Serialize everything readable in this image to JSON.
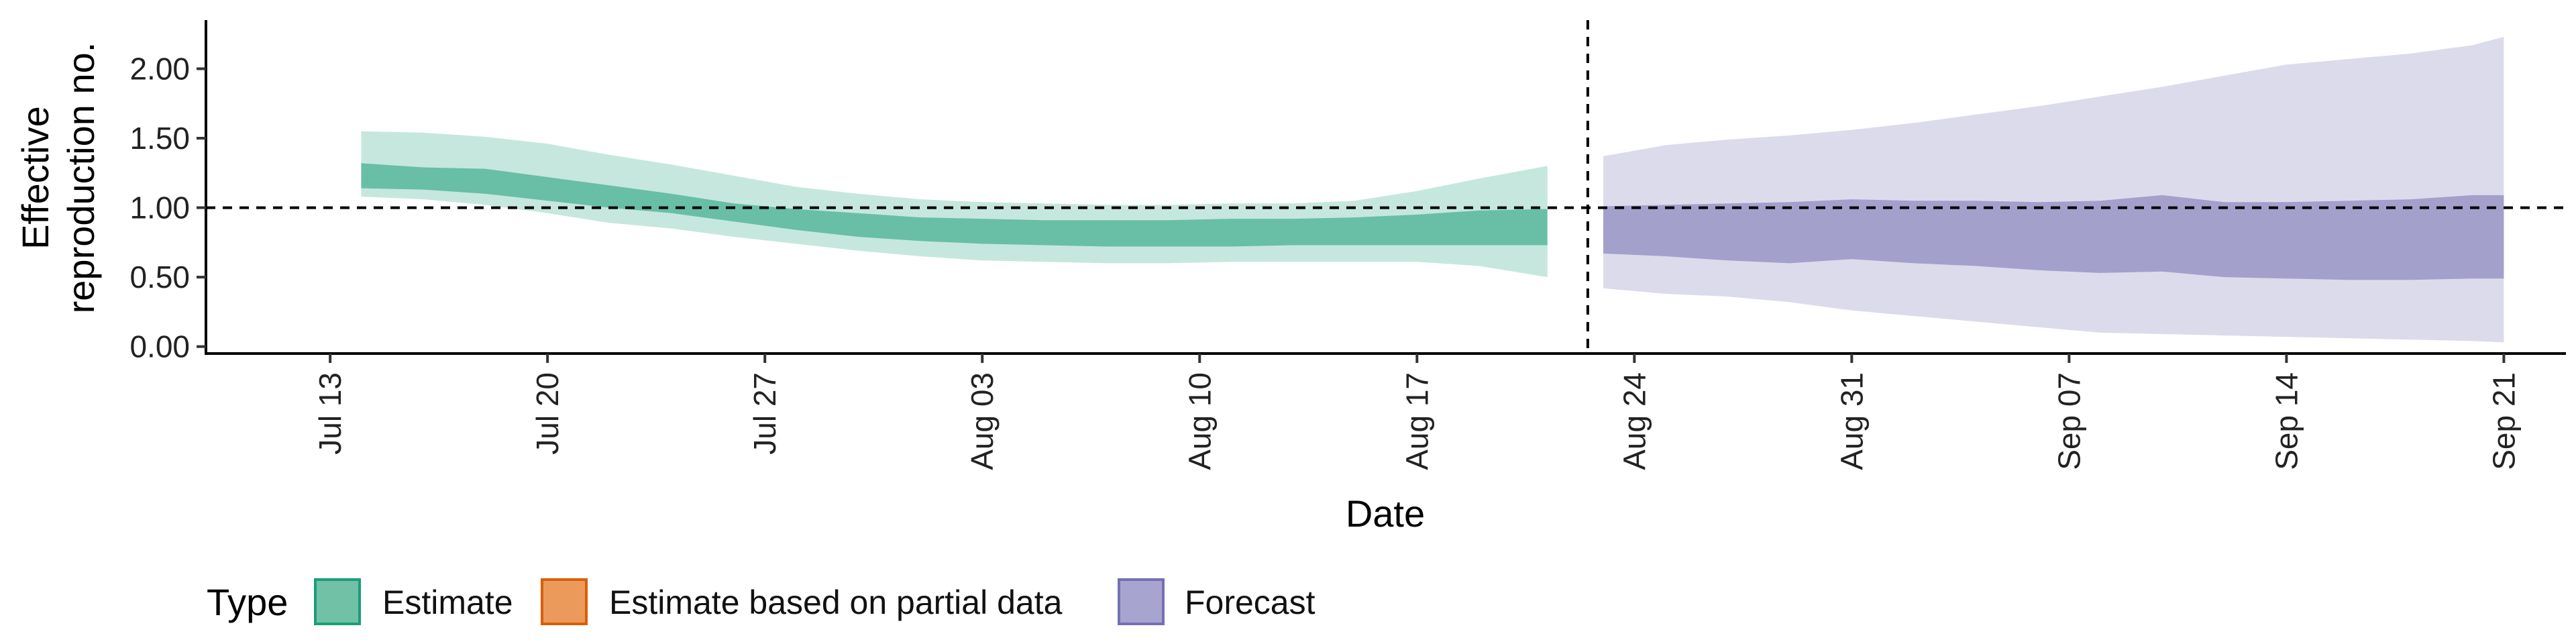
{
  "chart_data": {
    "type": "area",
    "xlabel": "Date",
    "ylabel_lines": [
      "Effective",
      "reproduction no."
    ],
    "y_ticks": [
      "0.00",
      "0.50",
      "1.00",
      "1.50",
      "2.00"
    ],
    "ylim": [
      -0.05,
      2.35
    ],
    "x_range_days": [
      -4,
      72
    ],
    "x_ticks": [
      {
        "day": 0,
        "label": "Jul 13"
      },
      {
        "day": 7,
        "label": "Jul 20"
      },
      {
        "day": 14,
        "label": "Jul 27"
      },
      {
        "day": 21,
        "label": "Aug 03"
      },
      {
        "day": 28,
        "label": "Aug 10"
      },
      {
        "day": 35,
        "label": "Aug 17"
      },
      {
        "day": 42,
        "label": "Aug 24"
      },
      {
        "day": 49,
        "label": "Aug 31"
      },
      {
        "day": 56,
        "label": "Sep 07"
      },
      {
        "day": 63,
        "label": "Sep 14"
      },
      {
        "day": 70,
        "label": "Sep 21"
      }
    ],
    "reference_hline": 1.0,
    "forecast_start_day": 40.5,
    "legend": {
      "title": "Type",
      "items": [
        {
          "label": "Estimate",
          "fill": "#70c1a6",
          "stroke": "#1b9e77"
        },
        {
          "label": "Estimate based on partial data",
          "fill": "#eb9a5c",
          "stroke": "#d95f02"
        },
        {
          "label": "Forecast",
          "fill": "#a8a4d0",
          "stroke": "#7570b3"
        }
      ]
    },
    "series": [
      {
        "name": "Estimate",
        "color": "#1b9e77",
        "days": [
          1,
          3,
          5,
          7,
          9,
          11,
          13,
          15,
          17,
          19,
          21,
          23,
          25,
          27,
          29,
          31,
          33,
          35,
          37,
          39.2
        ],
        "outer_lo": [
          1.08,
          1.06,
          1.02,
          0.96,
          0.89,
          0.85,
          0.79,
          0.74,
          0.69,
          0.65,
          0.62,
          0.61,
          0.6,
          0.6,
          0.61,
          0.61,
          0.61,
          0.61,
          0.58,
          0.5
        ],
        "outer_hi": [
          1.55,
          1.54,
          1.51,
          1.46,
          1.38,
          1.31,
          1.23,
          1.15,
          1.1,
          1.06,
          1.04,
          1.03,
          1.02,
          1.02,
          1.03,
          1.03,
          1.05,
          1.12,
          1.21,
          1.3
        ],
        "inner_lo": [
          1.14,
          1.13,
          1.1,
          1.05,
          1.0,
          0.96,
          0.9,
          0.84,
          0.79,
          0.76,
          0.74,
          0.73,
          0.72,
          0.72,
          0.72,
          0.73,
          0.73,
          0.73,
          0.73,
          0.73
        ],
        "inner_hi": [
          1.32,
          1.29,
          1.28,
          1.22,
          1.16,
          1.1,
          1.03,
          0.99,
          0.96,
          0.93,
          0.92,
          0.91,
          0.91,
          0.91,
          0.92,
          0.92,
          0.93,
          0.95,
          0.98,
          0.99
        ]
      },
      {
        "name": "Forecast",
        "color": "#7570b3",
        "days": [
          41,
          43,
          45,
          47,
          49,
          51,
          53,
          55,
          57,
          59,
          61,
          63,
          65,
          67,
          69,
          70
        ],
        "outer_lo": [
          0.42,
          0.38,
          0.36,
          0.32,
          0.26,
          0.22,
          0.18,
          0.14,
          0.1,
          0.09,
          0.08,
          0.07,
          0.06,
          0.05,
          0.04,
          0.03
        ],
        "outer_hi": [
          1.37,
          1.45,
          1.49,
          1.52,
          1.56,
          1.61,
          1.67,
          1.73,
          1.8,
          1.87,
          1.95,
          2.03,
          2.07,
          2.11,
          2.17,
          2.23
        ],
        "inner_lo": [
          0.67,
          0.65,
          0.62,
          0.6,
          0.63,
          0.6,
          0.58,
          0.55,
          0.53,
          0.54,
          0.5,
          0.49,
          0.48,
          0.48,
          0.49,
          0.49
        ],
        "inner_hi": [
          1.01,
          1.02,
          1.03,
          1.04,
          1.06,
          1.05,
          1.05,
          1.04,
          1.05,
          1.09,
          1.04,
          1.04,
          1.05,
          1.06,
          1.09,
          1.09
        ]
      }
    ]
  }
}
